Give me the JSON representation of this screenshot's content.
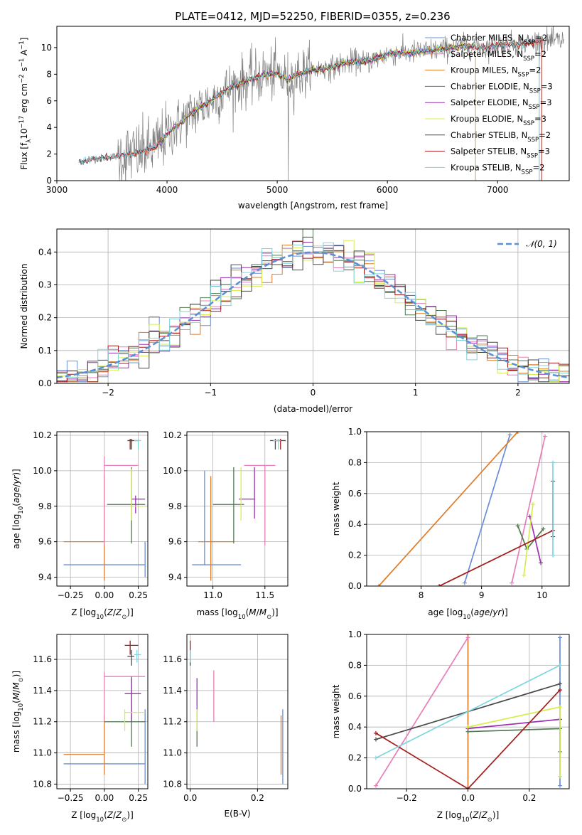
{
  "title": "PLATE=0412, MJD=52250, FIBERID=0355, z=0.236",
  "colors": {
    "chabrier_miles": "#6a8fd8",
    "salpeter_miles": "#e67fb9",
    "kroupa_miles": "#e07b27",
    "chabrier_elodie": "#4f7a4f",
    "salpeter_elodie": "#9b30b3",
    "kroupa_elodie": "#d6ee4a",
    "chabrier_stelib": "#4a4a4a",
    "salpeter_stelib": "#a51c1c",
    "kroupa_stelib": "#7dd6dd",
    "data": "#808080",
    "grid": "#b0b0b0",
    "gaussian": "#5b8fd6"
  },
  "chart_data": [
    {
      "type": "line",
      "id": "spectrum",
      "xlabel": "wavelength [Angstrom, rest frame]",
      "ylabel_parts": [
        "Flux [f",
        "λ",
        "10",
        "−17",
        " erg cm",
        "−2",
        " s",
        "−1",
        " A",
        "−1",
        "]"
      ],
      "xlim": [
        3000,
        7650
      ],
      "ylim": [
        0,
        11.6
      ],
      "xticks": [
        "3000",
        "4000",
        "5000",
        "6000",
        "7000"
      ],
      "yticks": [
        "0",
        "2",
        "4",
        "6",
        "8",
        "10"
      ],
      "legend_position": "upper-right",
      "series": [
        {
          "name": "Chabrier MILES, N",
          "sub": "SSP",
          "suffix": "=2",
          "color_key": "chabrier_miles"
        },
        {
          "name": "Salpeter MILES, N",
          "sub": "SSP",
          "suffix": "=2",
          "color_key": "salpeter_miles"
        },
        {
          "name": "Kroupa MILES, N",
          "sub": "SSP",
          "suffix": "=2",
          "color_key": "kroupa_miles"
        },
        {
          "name": "Chabrier ELODIE, N",
          "sub": "SSP",
          "suffix": "=3",
          "color_key": "chabrier_elodie"
        },
        {
          "name": "Salpeter ELODIE, N",
          "sub": "SSP",
          "suffix": "=3",
          "color_key": "salpeter_elodie"
        },
        {
          "name": "Kroupa ELODIE, N",
          "sub": "SSP",
          "suffix": "=3",
          "color_key": "kroupa_elodie"
        },
        {
          "name": "Chabrier STELIB, N",
          "sub": "SSP",
          "suffix": "=2",
          "color_key": "chabrier_stelib"
        },
        {
          "name": "Salpeter STELIB, N",
          "sub": "SSP",
          "suffix": "=3",
          "color_key": "salpeter_stelib"
        },
        {
          "name": "Kroupa STELIB, N",
          "sub": "SSP",
          "suffix": "=2",
          "color_key": "kroupa_stelib"
        }
      ],
      "model_continuum": {
        "x": [
          3200,
          3300,
          3400,
          3500,
          3600,
          3700,
          3800,
          3900,
          4000,
          4100,
          4200,
          4300,
          4400,
          4500,
          4600,
          4700,
          4800,
          4900,
          5000,
          5100,
          5200,
          5300,
          5400,
          5500,
          5600,
          5700,
          5800,
          5900,
          6000,
          6100,
          6200,
          6300,
          6400,
          6500,
          6600,
          6700,
          6800,
          6900,
          7000,
          7100,
          7200,
          7300,
          7400
        ],
        "y": [
          1.4,
          1.6,
          1.7,
          1.8,
          1.9,
          2.0,
          2.2,
          2.6,
          3.5,
          4.2,
          4.9,
          5.5,
          6.0,
          6.6,
          7.1,
          7.5,
          7.7,
          8.0,
          8.0,
          7.6,
          8.0,
          8.3,
          8.4,
          8.5,
          8.8,
          9.0,
          8.9,
          9.2,
          9.5,
          9.6,
          9.6,
          9.7,
          9.8,
          9.9,
          10.0,
          10.1,
          10.1,
          10.0,
          10.2,
          10.3,
          10.2,
          10.4,
          10.5
        ]
      },
      "model_xranges": [
        [
          3550,
          7380
        ],
        [
          3550,
          7380
        ],
        [
          3550,
          7400
        ],
        [
          3900,
          6800
        ],
        [
          3900,
          6800
        ],
        [
          3900,
          6800
        ],
        [
          3200,
          7380
        ],
        [
          3200,
          7400
        ],
        [
          3200,
          7380
        ]
      ]
    },
    {
      "type": "histogram",
      "id": "residuals",
      "xlabel": "(data-model)/error",
      "ylabel": "Normed distribution",
      "xlim": [
        -2.5,
        2.5
      ],
      "ylim": [
        0,
        0.47
      ],
      "xticks": [
        "−2",
        "−1",
        "0",
        "1",
        "2"
      ],
      "yticks": [
        "0.0",
        "0.1",
        "0.2",
        "0.3",
        "0.4"
      ],
      "gaussian_label": "𝒩(0, 1)",
      "legend_position": "upper-right",
      "bin_width": 0.1
    },
    {
      "type": "scatter",
      "id": "age_vs_Z",
      "xlabel": "Z [log10(Z/Z⊙)]",
      "ylabel": "age [log10(age/yr)]",
      "xlim": [
        -0.35,
        0.32
      ],
      "ylim": [
        9.35,
        10.22
      ],
      "xticks": [
        "−0.25",
        "0.00",
        "0.25"
      ],
      "yticks": [
        "9.4",
        "9.6",
        "9.8",
        "10.0",
        "10.2"
      ],
      "points": [
        {
          "c": "chabrier_miles",
          "x": 0.0,
          "xl": -0.3,
          "xh": 0.3,
          "y": 9.47,
          "yl": 9.47,
          "yh": 9.47,
          "vx": 0.3,
          "vyl": 9.4,
          "vyh": 9.6
        },
        {
          "c": "kroupa_miles",
          "x": 0.0,
          "xl": -0.3,
          "xh": 0.0,
          "y": 9.6,
          "yl": 9.38,
          "yh": 9.98
        },
        {
          "c": "salpeter_miles",
          "x": 0.0,
          "xl": 0.0,
          "xh": 0.25,
          "y": 10.03,
          "yl": 9.58,
          "yh": 10.08
        },
        {
          "c": "chabrier_elodie",
          "x": 0.2,
          "xl": 0.02,
          "xh": 0.3,
          "y": 9.81,
          "yl": 9.59,
          "yh": 10.02
        },
        {
          "c": "salpeter_elodie",
          "x": 0.23,
          "xl": 0.2,
          "xh": 0.3,
          "y": 9.84,
          "yl": 9.76,
          "yh": 9.86
        },
        {
          "c": "kroupa_elodie",
          "x": 0.2,
          "xl": 0.2,
          "xh": 0.3,
          "y": 9.8,
          "yl": 9.72,
          "yh": 10.01
        },
        {
          "c": "salpeter_stelib",
          "x": 0.19,
          "xl": 0.18,
          "xh": 0.25,
          "y": 10.17,
          "yl": 10.12,
          "yh": 10.18
        },
        {
          "c": "chabrier_stelib",
          "x": 0.2,
          "xl": 0.17,
          "xh": 0.21,
          "y": 10.17,
          "yl": 10.12,
          "yh": 10.18
        },
        {
          "c": "kroupa_stelib",
          "x": 0.25,
          "xl": 0.22,
          "xh": 0.27,
          "y": 10.17,
          "yl": 10.12,
          "yh": 10.18
        }
      ]
    },
    {
      "type": "scatter",
      "id": "age_vs_mass",
      "xlabel": "mass [log10(M/M⊙)]",
      "ylabel": "",
      "xlim": [
        10.75,
        11.72
      ],
      "ylim": [
        9.35,
        10.22
      ],
      "xticks": [
        "11.0",
        "11.5"
      ],
      "yticks": [
        "9.4",
        "9.6",
        "9.8",
        "10.0",
        "10.2"
      ],
      "points": [
        {
          "c": "chabrier_miles",
          "x": 10.92,
          "xl": 10.8,
          "xh": 11.27,
          "y": 9.47,
          "yl": 9.47,
          "yh": 10.0
        },
        {
          "c": "kroupa_miles",
          "x": 10.98,
          "xl": 10.86,
          "xh": 11.2,
          "y": 9.6,
          "yl": 9.38,
          "yh": 9.97
        },
        {
          "c": "salpeter_miles",
          "x": 11.5,
          "xl": 11.3,
          "xh": 11.6,
          "y": 10.03,
          "yl": 9.58,
          "yh": 10.03
        },
        {
          "c": "chabrier_elodie",
          "x": 11.2,
          "xl": 11.0,
          "xh": 11.3,
          "y": 9.81,
          "yl": 9.59,
          "yh": 10.02
        },
        {
          "c": "salpeter_elodie",
          "x": 11.4,
          "xl": 11.25,
          "xh": 11.4,
          "y": 9.84,
          "yl": 9.73,
          "yh": 10.02
        },
        {
          "c": "kroupa_elodie",
          "x": 11.27,
          "xl": 11.27,
          "xh": 11.27,
          "y": 9.8,
          "yl": 9.72,
          "yh": 10.02
        },
        {
          "c": "salpeter_stelib",
          "x": 11.65,
          "xl": 11.6,
          "xh": 11.7,
          "y": 10.17,
          "yl": 10.12,
          "yh": 10.18
        },
        {
          "c": "chabrier_stelib",
          "x": 11.6,
          "xl": 11.55,
          "xh": 11.65,
          "y": 10.17,
          "yl": 10.12,
          "yh": 10.18
        },
        {
          "c": "kroupa_stelib",
          "x": 11.63,
          "xl": 11.58,
          "xh": 11.65,
          "y": 10.17,
          "yl": 10.12,
          "yh": 10.18
        }
      ]
    },
    {
      "type": "line",
      "id": "massweight_vs_age",
      "xlabel": "age [log10(age/yr)]",
      "ylabel": "mass weight",
      "xlim": [
        7.1,
        10.45
      ],
      "ylim": [
        0,
        1
      ],
      "xticks": [
        "8",
        "9",
        "10"
      ],
      "yticks": [
        "0.0",
        "0.2",
        "0.4",
        "0.6",
        "0.8",
        "1.0"
      ],
      "series": [
        {
          "c": "chabrier_miles",
          "x": [
            8.72,
            9.47
          ],
          "y": [
            0.02,
            0.98
          ]
        },
        {
          "c": "kroupa_miles",
          "x": [
            7.3,
            9.6
          ],
          "y": [
            0.0,
            1.0
          ]
        },
        {
          "c": "salpeter_miles",
          "x": [
            9.5,
            10.05
          ],
          "y": [
            0.02,
            0.97
          ]
        },
        {
          "c": "chabrier_elodie",
          "x": [
            9.6,
            9.75,
            10.02
          ],
          "y": [
            0.39,
            0.24,
            0.37
          ]
        },
        {
          "c": "salpeter_elodie",
          "x": [
            9.8,
            9.98
          ],
          "y": [
            0.45,
            0.15
          ]
        },
        {
          "c": "kroupa_elodie",
          "x": [
            9.7,
            9.85
          ],
          "y": [
            0.07,
            0.53
          ]
        },
        {
          "c": "chabrier_stelib",
          "x": [
            10.18,
            10.18
          ],
          "y": [
            0.32,
            0.68
          ]
        },
        {
          "c": "salpeter_stelib",
          "x": [
            8.3,
            10.18
          ],
          "y": [
            0.0,
            0.36
          ]
        },
        {
          "c": "kroupa_stelib",
          "x": [
            10.18,
            10.18
          ],
          "y": [
            0.2,
            0.8
          ]
        }
      ]
    },
    {
      "type": "scatter",
      "id": "mass_vs_Z",
      "xlabel": "Z [log10(Z/Z⊙)]",
      "ylabel": "mass [log10(M/M⊙)]",
      "xlim": [
        -0.35,
        0.32
      ],
      "ylim": [
        10.77,
        11.76
      ],
      "xticks": [
        "−0.25",
        "0.00",
        "0.25"
      ],
      "yticks": [
        "10.8",
        "11.0",
        "11.2",
        "11.4",
        "11.6"
      ],
      "points": [
        {
          "c": "chabrier_miles",
          "x": 0.3,
          "xl": -0.3,
          "xh": 0.3,
          "y": 10.93,
          "yl": 10.8,
          "yh": 11.28
        },
        {
          "c": "kroupa_miles",
          "x": 0.0,
          "xl": -0.3,
          "xh": 0.0,
          "y": 10.99,
          "yl": 10.86,
          "yh": 11.24
        },
        {
          "c": "salpeter_miles",
          "x": 0.0,
          "xl": 0.0,
          "xh": 0.3,
          "y": 11.49,
          "yl": 11.2,
          "yh": 11.52
        },
        {
          "c": "chabrier_elodie",
          "x": 0.2,
          "xl": 0.0,
          "xh": 0.3,
          "y": 11.2,
          "yl": 11.04,
          "yh": 11.49
        },
        {
          "c": "salpeter_elodie",
          "x": 0.2,
          "xl": 0.15,
          "xh": 0.27,
          "y": 11.38,
          "yl": 11.2,
          "yh": 11.48
        },
        {
          "c": "kroupa_elodie",
          "x": 0.15,
          "xl": 0.15,
          "xh": 0.3,
          "y": 11.26,
          "yl": 11.14,
          "yh": 11.28
        },
        {
          "c": "salpeter_stelib",
          "x": 0.19,
          "xl": 0.15,
          "xh": 0.25,
          "y": 11.69,
          "yl": 11.63,
          "yh": 11.72
        },
        {
          "c": "chabrier_stelib",
          "x": 0.2,
          "xl": 0.17,
          "xh": 0.22,
          "y": 11.62,
          "yl": 11.56,
          "yh": 11.66
        },
        {
          "c": "kroupa_stelib",
          "x": 0.24,
          "xl": 0.22,
          "xh": 0.27,
          "y": 11.63,
          "yl": 11.58,
          "yh": 11.66
        }
      ]
    },
    {
      "type": "scatter",
      "id": "mass_vs_ebv",
      "xlabel": "E(B-V)",
      "ylabel": "",
      "xlim": [
        -0.01,
        0.29
      ],
      "ylim": [
        10.77,
        11.76
      ],
      "xticks": [
        "0.0",
        "0.2"
      ],
      "yticks": [
        "10.8",
        "11.0",
        "11.2",
        "11.4",
        "11.6"
      ],
      "points": [
        {
          "c": "chabrier_miles",
          "x": 0.275,
          "yl": 10.8,
          "yh": 11.28
        },
        {
          "c": "kroupa_miles",
          "x": 0.27,
          "yl": 10.86,
          "yh": 11.24
        },
        {
          "c": "salpeter_miles",
          "x": 0.07,
          "yl": 11.2,
          "yh": 11.53
        },
        {
          "c": "chabrier_elodie",
          "x": 0.02,
          "yl": 11.04,
          "yh": 11.26
        },
        {
          "c": "salpeter_elodie",
          "x": 0.02,
          "yl": 11.26,
          "yh": 11.48
        },
        {
          "c": "kroupa_elodie",
          "x": 0.02,
          "yl": 11.14,
          "yh": 11.28
        },
        {
          "c": "salpeter_stelib",
          "x": 0.0,
          "yl": 11.64,
          "yh": 11.72
        },
        {
          "c": "chabrier_stelib",
          "x": 0.0,
          "yl": 11.56,
          "yh": 11.66
        },
        {
          "c": "kroupa_stelib",
          "x": 0.0,
          "yl": 11.58,
          "yh": 11.66
        }
      ]
    },
    {
      "type": "line",
      "id": "massweight_vs_Z",
      "xlabel": "Z [log10(Z/Z⊙)]",
      "ylabel": "mass weight",
      "xlim": [
        -0.33,
        0.33
      ],
      "ylim": [
        0,
        1
      ],
      "xticks": [
        "−0.2",
        "0.0",
        "0.2"
      ],
      "yticks": [
        "0.0",
        "0.2",
        "0.4",
        "0.6",
        "0.8",
        "1.0"
      ],
      "series": [
        {
          "c": "chabrier_miles",
          "x": [
            0.3,
            0.3
          ],
          "y": [
            0.02,
            0.98
          ]
        },
        {
          "c": "kroupa_miles",
          "x": [
            0.0,
            0.0
          ],
          "y": [
            0.0,
            1.0
          ]
        },
        {
          "c": "salpeter_miles",
          "x": [
            -0.3,
            0.0
          ],
          "y": [
            0.02,
            0.98
          ]
        },
        {
          "c": "chabrier_elodie",
          "x": [
            0.0,
            0.3,
            0.3
          ],
          "y": [
            0.37,
            0.39,
            0.24
          ]
        },
        {
          "c": "salpeter_elodie",
          "x": [
            0.0,
            0.3
          ],
          "y": [
            0.39,
            0.45
          ]
        },
        {
          "c": "kroupa_elodie",
          "x": [
            0.0,
            0.3,
            0.3
          ],
          "y": [
            0.4,
            0.53,
            0.08
          ]
        },
        {
          "c": "chabrier_stelib",
          "x": [
            -0.3,
            0.3
          ],
          "y": [
            0.32,
            0.68
          ]
        },
        {
          "c": "salpeter_stelib",
          "x": [
            -0.3,
            0.0,
            0.3
          ],
          "y": [
            0.36,
            0.0,
            0.64
          ]
        },
        {
          "c": "kroupa_stelib",
          "x": [
            -0.3,
            0.3
          ],
          "y": [
            0.2,
            0.8
          ]
        }
      ]
    }
  ]
}
